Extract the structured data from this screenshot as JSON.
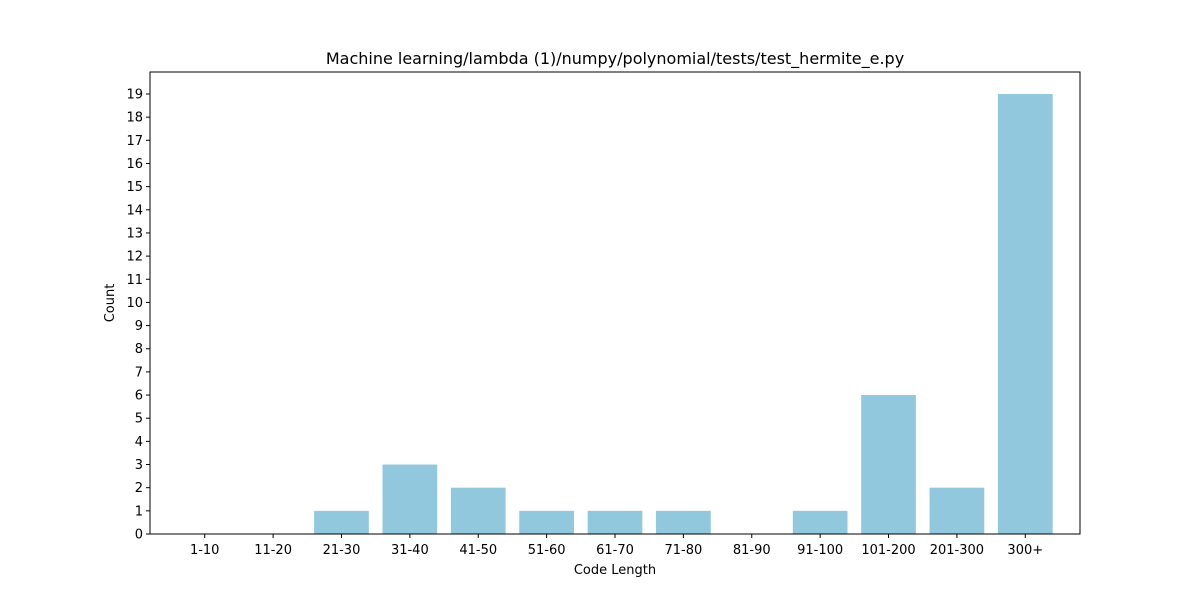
{
  "chart_data": {
    "type": "bar",
    "title": "Machine learning/lambda (1)/numpy/polynomial/tests/test_hermite_e.py",
    "xlabel": "Code Length",
    "ylabel": "Count",
    "categories": [
      "1-10",
      "11-20",
      "21-30",
      "31-40",
      "41-50",
      "51-60",
      "61-70",
      "71-80",
      "81-90",
      "91-100",
      "101-200",
      "201-300",
      "300+"
    ],
    "values": [
      0,
      0,
      1,
      3,
      2,
      1,
      1,
      1,
      0,
      1,
      6,
      2,
      19
    ],
    "ylim": [
      0,
      19.95
    ],
    "yticks": [
      0,
      1,
      2,
      3,
      4,
      5,
      6,
      7,
      8,
      9,
      10,
      11,
      12,
      13,
      14,
      15,
      16,
      17,
      18,
      19
    ],
    "grid": false,
    "legend": "none",
    "bar_color": "#92c8de"
  }
}
